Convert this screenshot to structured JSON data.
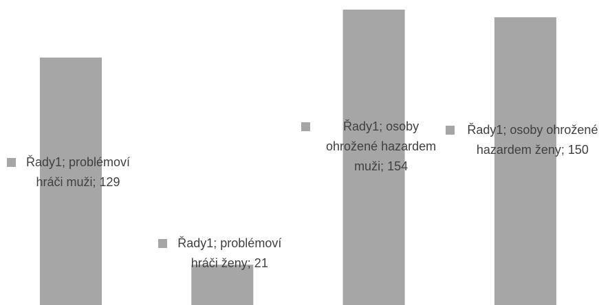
{
  "chart_data": {
    "type": "bar",
    "series": [
      {
        "name": "Řady1",
        "color": "#a6a6a6",
        "values": [
          129,
          21,
          154,
          150
        ],
        "value_labels": [
          "Řady1; problémoví hráči muži; 129",
          "Řady1; problémoví hráči ženy; 21",
          "Řady1; osoby ohrožené hazardem muži; 154",
          "Řady1; osoby ohrožené hazardem ženy; 150"
        ]
      }
    ],
    "ylim": [
      0,
      159
    ]
  }
}
